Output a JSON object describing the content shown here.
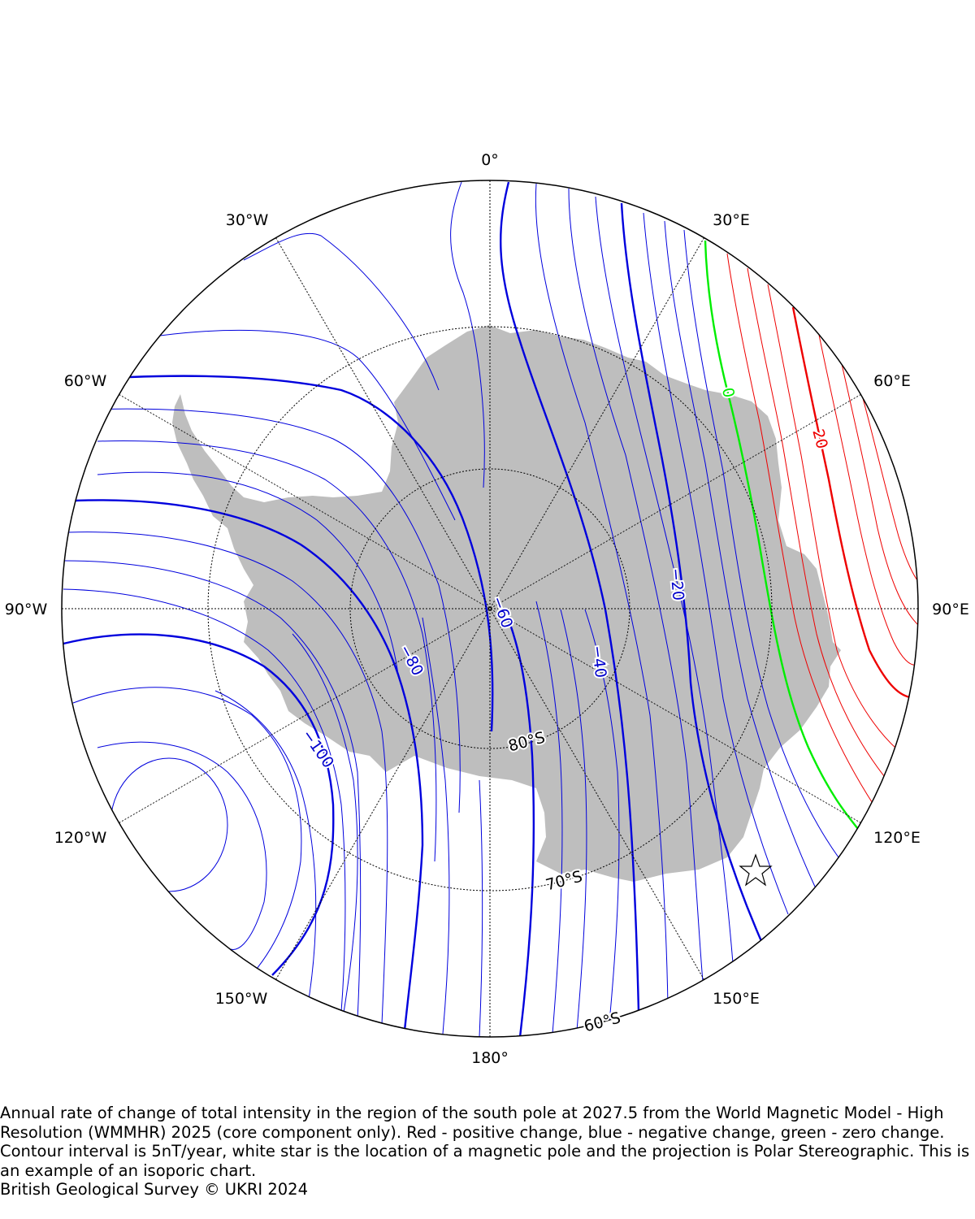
{
  "map": {
    "projection": "Polar Stereographic",
    "meridian_labels": [
      {
        "lon": 0,
        "text": "0°"
      },
      {
        "lon": 30,
        "text": "30°E"
      },
      {
        "lon": 60,
        "text": "60°E"
      },
      {
        "lon": 90,
        "text": "90°E"
      },
      {
        "lon": 120,
        "text": "120°E"
      },
      {
        "lon": 150,
        "text": "150°E"
      },
      {
        "lon": 180,
        "text": "180°"
      },
      {
        "lon": -150,
        "text": "150°W"
      },
      {
        "lon": -120,
        "text": "120°W"
      },
      {
        "lon": -90,
        "text": "90°W"
      },
      {
        "lon": -60,
        "text": "60°W"
      },
      {
        "lon": -30,
        "text": "30°W"
      }
    ],
    "parallel_labels": [
      {
        "lat": -80,
        "text": "80°S"
      },
      {
        "lat": -70,
        "text": "70°S"
      },
      {
        "lat": -60,
        "text": "60°S"
      }
    ],
    "contour_labels": [
      {
        "value": 0,
        "text": "0",
        "color": "#00ee00"
      },
      {
        "value": 20,
        "text": "20",
        "color": "#ee0000"
      },
      {
        "value": -20,
        "text": "−20",
        "color": "#0000cc"
      },
      {
        "value": -40,
        "text": "−40",
        "color": "#0000cc"
      },
      {
        "value": -60,
        "text": "−60",
        "color": "#0000cc"
      },
      {
        "value": -80,
        "text": "−80",
        "color": "#0000cc"
      },
      {
        "value": -100,
        "text": "−100",
        "color": "#0000cc"
      }
    ],
    "contour_interval": "5nT/year",
    "colors": {
      "positive": "#ee0000",
      "negative": "#0000dd",
      "zero": "#00ee00",
      "land": "#bebebe",
      "graticule": "#000000"
    },
    "magnetic_pole_marker": "white-star"
  },
  "caption": {
    "text": "Annual rate of change of total intensity in the region of the south pole at 2027.5 from the World Magnetic Model - High Resolution (WMMHR) 2025 (core component only). Red - positive change, blue - negative change, green - zero change. Contour interval is 5nT/year, white star is the location of a magnetic pole and the projection is Polar Stereographic. This is an example of an isoporic chart.",
    "credit": "British Geological Survey © UKRI 2024"
  }
}
